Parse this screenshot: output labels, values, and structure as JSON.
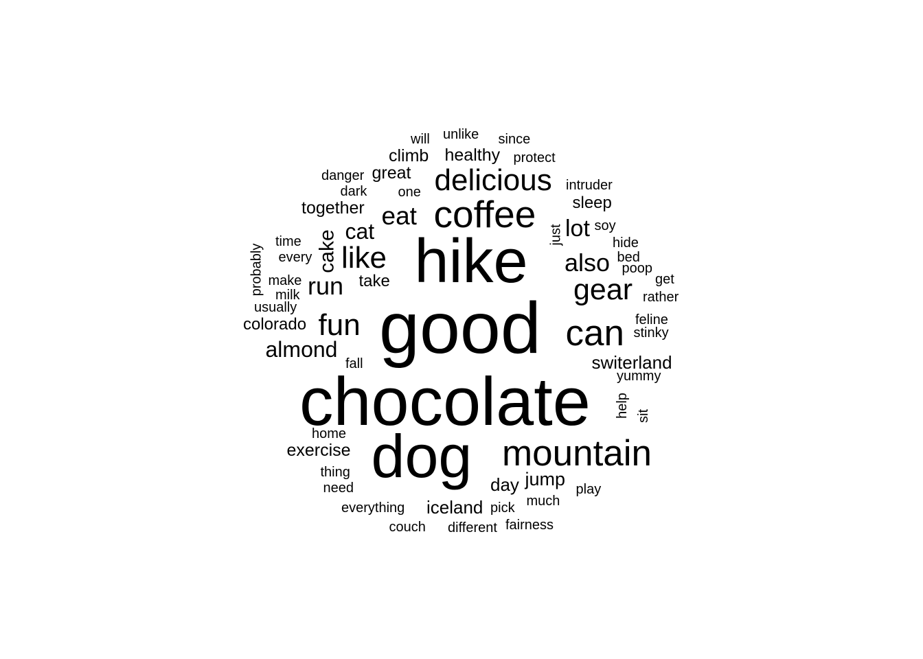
{
  "word_cloud": {
    "text_color": "#000000",
    "background_color": "#ffffff",
    "words": [
      {
        "text": "good",
        "weight": 100
      },
      {
        "text": "chocolate",
        "weight": 93
      },
      {
        "text": "hike",
        "weight": 88
      },
      {
        "text": "dog",
        "weight": 86
      },
      {
        "text": "mountain",
        "weight": 52
      },
      {
        "text": "coffee",
        "weight": 54
      },
      {
        "text": "can",
        "weight": 52
      },
      {
        "text": "delicious",
        "weight": 44
      },
      {
        "text": "like",
        "weight": 44
      },
      {
        "text": "fun",
        "weight": 44
      },
      {
        "text": "gear",
        "weight": 43
      },
      {
        "text": "eat",
        "weight": 37
      },
      {
        "text": "also",
        "weight": 36
      },
      {
        "text": "run",
        "weight": 36
      },
      {
        "text": "lot",
        "weight": 34
      },
      {
        "text": "almond",
        "weight": 32
      },
      {
        "text": "cat",
        "weight": 32
      },
      {
        "text": "cake",
        "weight": 30
      },
      {
        "text": "jump",
        "weight": 27
      },
      {
        "text": "exercise",
        "weight": 25
      },
      {
        "text": "iceland",
        "weight": 26
      },
      {
        "text": "day",
        "weight": 26
      },
      {
        "text": "switerland",
        "weight": 26
      },
      {
        "text": "climb",
        "weight": 25
      },
      {
        "text": "healthy",
        "weight": 25
      },
      {
        "text": "great",
        "weight": 25
      },
      {
        "text": "together",
        "weight": 25
      },
      {
        "text": "colorado",
        "weight": 24
      },
      {
        "text": "sleep",
        "weight": 24
      },
      {
        "text": "take",
        "weight": 24
      },
      {
        "text": "unlike",
        "weight": 20
      },
      {
        "text": "will",
        "weight": 20
      },
      {
        "text": "since",
        "weight": 20
      },
      {
        "text": "protect",
        "weight": 20
      },
      {
        "text": "danger",
        "weight": 20
      },
      {
        "text": "dark",
        "weight": 20
      },
      {
        "text": "one",
        "weight": 20
      },
      {
        "text": "intruder",
        "weight": 20
      },
      {
        "text": "soy",
        "weight": 20
      },
      {
        "text": "just",
        "weight": 20
      },
      {
        "text": "hide",
        "weight": 20
      },
      {
        "text": "bed",
        "weight": 20
      },
      {
        "text": "poop",
        "weight": 20
      },
      {
        "text": "get",
        "weight": 20
      },
      {
        "text": "rather",
        "weight": 20
      },
      {
        "text": "time",
        "weight": 20
      },
      {
        "text": "every",
        "weight": 20
      },
      {
        "text": "probably",
        "weight": 20
      },
      {
        "text": "make",
        "weight": 20
      },
      {
        "text": "milk",
        "weight": 20
      },
      {
        "text": "usually",
        "weight": 20
      },
      {
        "text": "feline",
        "weight": 20
      },
      {
        "text": "stinky",
        "weight": 20
      },
      {
        "text": "fall",
        "weight": 20
      },
      {
        "text": "yummy",
        "weight": 20
      },
      {
        "text": "help",
        "weight": 20
      },
      {
        "text": "sit",
        "weight": 20
      },
      {
        "text": "home",
        "weight": 20
      },
      {
        "text": "thing",
        "weight": 20
      },
      {
        "text": "need",
        "weight": 20
      },
      {
        "text": "play",
        "weight": 20
      },
      {
        "text": "everything",
        "weight": 20
      },
      {
        "text": "pick",
        "weight": 20
      },
      {
        "text": "much",
        "weight": 20
      },
      {
        "text": "couch",
        "weight": 20
      },
      {
        "text": "different",
        "weight": 20
      },
      {
        "text": "fairness",
        "weight": 20
      }
    ]
  }
}
